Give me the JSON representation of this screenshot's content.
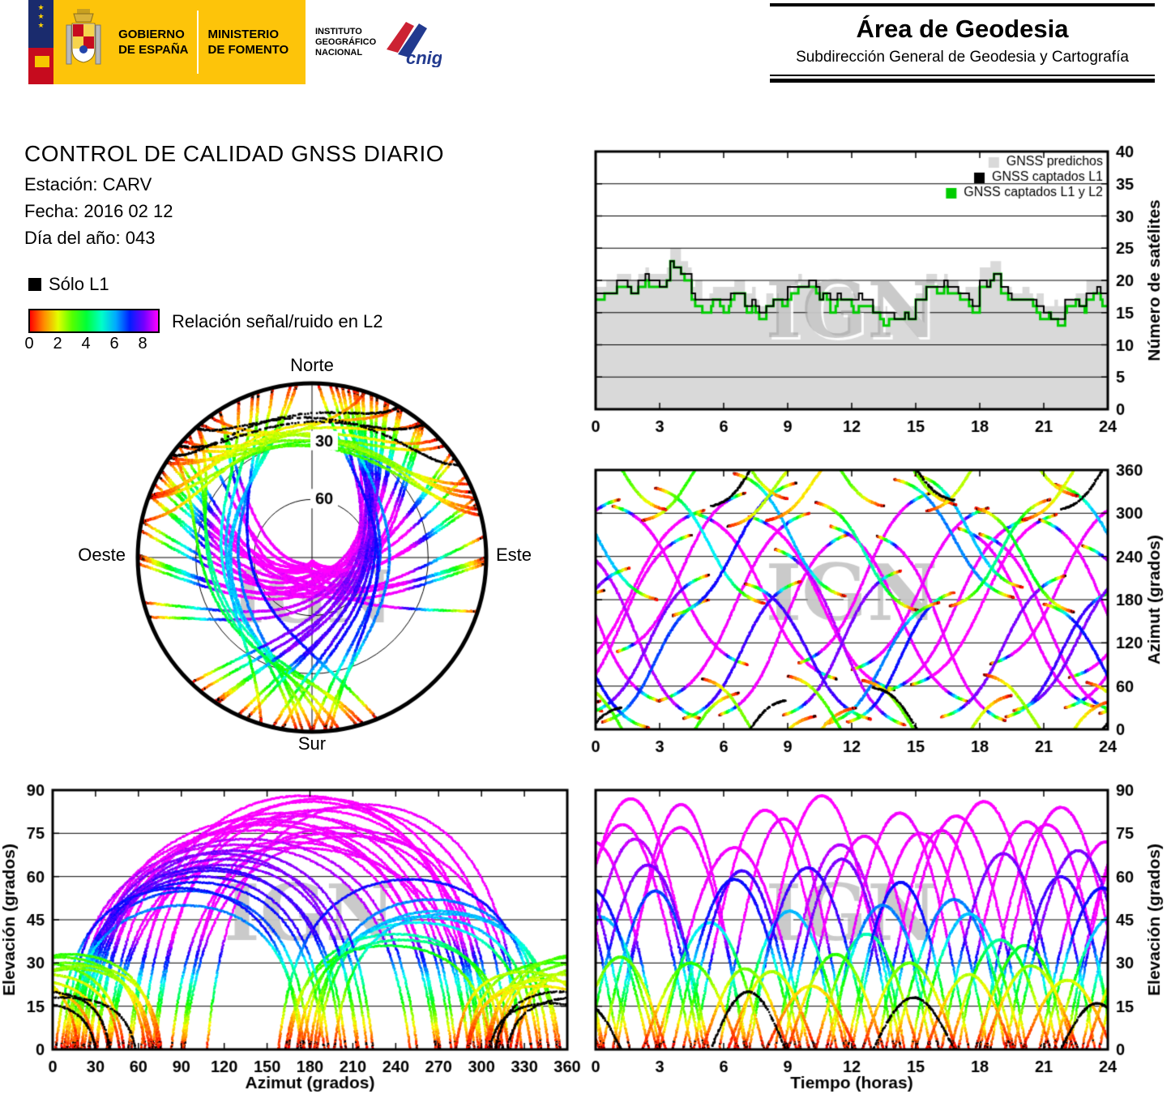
{
  "header": {
    "gobierno": {
      "line1": "GOBIERNO",
      "line2": "DE ESPAÑA"
    },
    "ministerio": {
      "line1": "MINISTERIO",
      "line2": "DE FOMENTO"
    },
    "instituto": {
      "line1": "INSTITUTO",
      "line2": "GEOGRÁFICO",
      "line3": "NACIONAL"
    },
    "cnig_text": "cnig",
    "area_title": "Área de Geodesia",
    "area_subtitle": "Subdirección General de Geodesia y Cartografía"
  },
  "info": {
    "title": "CONTROL DE CALIDAD GNSS DIARIO",
    "station_line": "Estación: CARV",
    "date_line": "Fecha: 2016 02 12",
    "doy_line": "Día del año: 043"
  },
  "legend": {
    "solo_l1_label": "Sólo L1",
    "snr_label": "Relación señal/ruido en L2",
    "snr_ticks": [
      "0",
      "2",
      "4",
      "6",
      "8"
    ]
  },
  "watermark": "IGN",
  "skyplot": {
    "north": "Norte",
    "south": "Sur",
    "east": "Este",
    "west": "Oeste",
    "ring_labels": [
      "30",
      "60"
    ]
  },
  "chart_data": {
    "satellite_count": {
      "type": "area",
      "xlabel": "",
      "ylabel": "Número de satélites",
      "xlim": [
        0,
        24
      ],
      "ylim": [
        0,
        40
      ],
      "x_ticks": [
        0,
        3,
        6,
        9,
        12,
        15,
        18,
        21,
        24
      ],
      "y_ticks": [
        0,
        5,
        10,
        15,
        20,
        25,
        30,
        35,
        40
      ],
      "x_step_hours": 0.5,
      "series": [
        {
          "name": "GNSS predichos",
          "color": "#d9d9d9",
          "values": [
            18,
            19,
            20,
            20,
            21,
            20,
            21,
            24,
            22,
            19,
            17,
            18,
            18,
            19,
            18,
            16,
            17,
            18,
            19,
            20,
            20,
            19,
            18,
            18,
            18,
            17,
            16,
            15,
            14,
            15,
            18,
            20,
            20,
            19,
            18,
            18,
            21,
            22,
            19,
            18,
            18,
            17,
            15,
            16,
            17,
            18,
            19,
            19,
            19
          ]
        },
        {
          "name": "GNSS captados L1",
          "color": "#000000",
          "values": [
            18,
            18,
            20,
            19,
            21,
            20,
            20,
            23,
            21,
            18,
            17,
            17,
            18,
            18,
            17,
            16,
            17,
            17,
            19,
            19,
            20,
            18,
            18,
            17,
            18,
            17,
            15,
            15,
            14,
            15,
            17,
            19,
            20,
            19,
            18,
            17,
            20,
            21,
            19,
            18,
            17,
            17,
            15,
            15,
            17,
            17,
            18,
            19,
            19
          ]
        },
        {
          "name": "GNSS captados L1 y L2",
          "color": "#00cc00",
          "values": [
            18,
            18,
            19,
            19,
            20,
            19,
            20,
            23,
            21,
            18,
            16,
            17,
            17,
            18,
            17,
            15,
            17,
            17,
            18,
            19,
            19,
            18,
            17,
            17,
            17,
            16,
            15,
            14,
            14,
            15,
            17,
            19,
            19,
            18,
            18,
            17,
            20,
            21,
            18,
            18,
            17,
            16,
            15,
            15,
            16,
            17,
            18,
            18,
            19
          ]
        }
      ]
    },
    "azimuth_vs_time": {
      "type": "scatter",
      "xlabel": "",
      "ylabel": "Azimut (grados)",
      "xlim": [
        0,
        24
      ],
      "ylim": [
        0,
        360
      ],
      "x_ticks": [
        0,
        3,
        6,
        9,
        12,
        15,
        18,
        21,
        24
      ],
      "y_ticks": [
        0,
        60,
        120,
        180,
        240,
        300,
        360
      ]
    },
    "elevation_vs_azimuth": {
      "type": "scatter",
      "xlabel": "Azimut (grados)",
      "ylabel": "Elevación (grados)",
      "xlim": [
        0,
        360
      ],
      "ylim": [
        0,
        90
      ],
      "x_ticks": [
        0,
        30,
        60,
        90,
        120,
        150,
        180,
        210,
        240,
        270,
        300,
        330,
        360
      ],
      "y_ticks": [
        0,
        15,
        30,
        45,
        60,
        75,
        90
      ]
    },
    "elevation_vs_time": {
      "type": "scatter",
      "xlabel": "Tiempo (horas)",
      "ylabel": "Elevación (grados)",
      "xlim": [
        0,
        24
      ],
      "ylim": [
        0,
        90
      ],
      "x_ticks": [
        0,
        3,
        6,
        9,
        12,
        15,
        18,
        21,
        24
      ],
      "y_ticks": [
        0,
        15,
        30,
        45,
        60,
        75,
        90
      ]
    },
    "snr_colormap": {
      "min": 0,
      "max": 9,
      "hue_min": 0,
      "hue_max": 300
    },
    "passes_fields": [
      "start_hour",
      "duration_hours",
      "max_elevation_deg",
      "culmination_azimuth_deg",
      "azimuth_halfspan_deg",
      "direction",
      "snr_scale"
    ],
    "passes": [
      [
        -2.0,
        6.5,
        78,
        150,
        120,
        1,
        1.0
      ],
      [
        0.8,
        6.3,
        77,
        200,
        110,
        -1,
        1.0
      ],
      [
        3.0,
        7.0,
        70,
        170,
        130,
        1,
        1.0
      ],
      [
        4.6,
        6.7,
        83,
        185,
        115,
        -1,
        1.05
      ],
      [
        5.8,
        6.0,
        80,
        145,
        125,
        1,
        1.0
      ],
      [
        7.2,
        6.8,
        88,
        175,
        120,
        -1,
        1.05
      ],
      [
        9.5,
        6.2,
        74,
        210,
        118,
        1,
        1.0
      ],
      [
        11.0,
        6.5,
        82,
        160,
        122,
        -1,
        1.0
      ],
      [
        12.0,
        6.4,
        75,
        195,
        112,
        1,
        1.0
      ],
      [
        13.2,
        6.0,
        76,
        140,
        128,
        -1,
        1.0
      ],
      [
        14.8,
        6.8,
        86,
        180,
        118,
        1,
        1.05
      ],
      [
        17.0,
        6.4,
        79,
        155,
        124,
        -1,
        1.0
      ],
      [
        18.5,
        6.6,
        84,
        205,
        114,
        1,
        1.0
      ],
      [
        20.8,
        6.2,
        72,
        165,
        126,
        -1,
        1.0
      ],
      [
        22.2,
        6.9,
        87,
        188,
        116,
        1,
        1.05
      ],
      [
        22.8,
        6.1,
        73,
        135,
        120,
        -1,
        0.95
      ],
      [
        1.0,
        6.0,
        85,
        218,
        110,
        1,
        1.0
      ],
      [
        8.4,
        6.1,
        71,
        128,
        122,
        -1,
        0.95
      ],
      [
        13.6,
        6.6,
        81,
        172,
        119,
        1,
        1.0
      ],
      [
        18.0,
        6.3,
        78,
        148,
        123,
        -1,
        1.0
      ],
      [
        0.3,
        5.0,
        55,
        95,
        85,
        1,
        0.75
      ],
      [
        2.8,
        5.1,
        44,
        255,
        80,
        -1,
        0.6
      ],
      [
        4.1,
        5.5,
        62,
        110,
        95,
        1,
        0.85
      ],
      [
        6.5,
        5.2,
        48,
        270,
        85,
        -1,
        0.65
      ],
      [
        8.8,
        5.5,
        66,
        120,
        100,
        1,
        0.9
      ],
      [
        10.3,
        4.8,
        40,
        240,
        75,
        -1,
        0.55
      ],
      [
        11.8,
        5.0,
        58,
        100,
        90,
        1,
        0.8
      ],
      [
        14.0,
        5.6,
        52,
        265,
        82,
        -1,
        0.7
      ],
      [
        16.2,
        5.8,
        68,
        115,
        98,
        1,
        0.9
      ],
      [
        17.8,
        4.6,
        36,
        235,
        72,
        -1,
        0.5
      ],
      [
        19.2,
        5.2,
        60,
        105,
        88,
        1,
        0.85
      ],
      [
        21.5,
        5.4,
        46,
        260,
        80,
        -1,
        0.65
      ],
      [
        23.6,
        5.7,
        64,
        118,
        96,
        1,
        0.9
      ],
      [
        3.6,
        5.8,
        59,
        250,
        92,
        1,
        0.8
      ],
      [
        7.0,
        5.9,
        63,
        108,
        94,
        -1,
        0.85
      ],
      [
        10.8,
        5.3,
        50,
        92,
        84,
        1,
        0.7
      ],
      [
        15.0,
        5.0,
        47,
        275,
        78,
        -1,
        0.65
      ],
      [
        19.6,
        6.0,
        69,
        125,
        99,
        1,
        0.9
      ],
      [
        21.0,
        5.5,
        56,
        88,
        86,
        -1,
        0.8
      ],
      [
        16.6,
        4.7,
        38,
        245,
        74,
        1,
        0.55
      ],
      [
        2.2,
        4.5,
        30,
        350,
        60,
        1,
        0.5
      ],
      [
        5.0,
        4.0,
        28,
        15,
        55,
        -1,
        0.45
      ],
      [
        8.0,
        4.2,
        22,
        340,
        50,
        1,
        0.35
      ],
      [
        12.5,
        4.4,
        30,
        10,
        58,
        -1,
        0.45
      ],
      [
        15.5,
        4.0,
        26,
        355,
        52,
        1,
        0.4
      ],
      [
        18.2,
        4.4,
        29,
        20,
        56,
        -1,
        0.4
      ],
      [
        20.0,
        4.2,
        24,
        345,
        54,
        1,
        0.4
      ],
      [
        23.0,
        4.3,
        32,
        5,
        60,
        -1,
        0.45
      ],
      [
        6.2,
        4.1,
        27,
        330,
        48,
        1,
        0.4
      ],
      [
        9.0,
        4.5,
        33,
        12,
        62,
        -1,
        0.45
      ],
      [
        5.4,
        3.5,
        20,
        355,
        45,
        1,
        0
      ],
      [
        13.0,
        3.8,
        18,
        8,
        50,
        -1,
        0
      ],
      [
        21.8,
        3.4,
        16,
        348,
        42,
        1,
        0
      ]
    ]
  }
}
